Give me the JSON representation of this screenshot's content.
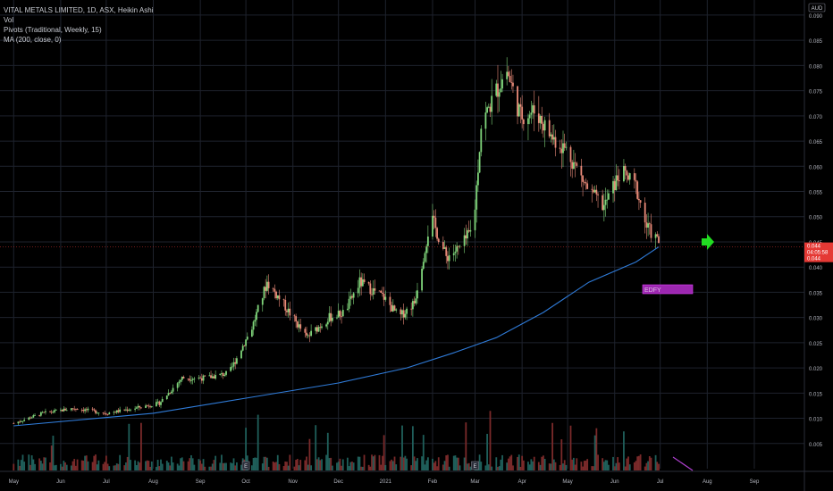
{
  "legend": {
    "title": "VITAL METALS LIMITED, 1D, ASX, Heikin Ashi",
    "line2": "Vol",
    "line3": "Pivots (Traditional, Weekly, 15)",
    "line4": "MA (200, close, 0)"
  },
  "currency_badge": "AUD",
  "price_labels": {
    "last": "0.044",
    "countdown": "04:05:58",
    "ma_value": "0.044"
  },
  "annotation": "EDFY",
  "colors": {
    "up": "#26a69a",
    "up_candle": "#7fd47a",
    "down": "#ef5350",
    "down_candle": "#e98a78",
    "ma": "#2f7bd8",
    "vol_up": "#1f5f5a",
    "vol_down": "#7a2a2a",
    "arrow": "#22dd22",
    "annotation_bg": "#9c27b0",
    "price_badge": "#e53935",
    "pivot": "#f5a623"
  },
  "chart_data": {
    "type": "candlestick",
    "yaxis": {
      "ticks": [
        "0.005",
        "0.010",
        "0.015",
        "0.020",
        "0.025",
        "0.030",
        "0.035",
        "0.040",
        "0.045",
        "0.050",
        "0.055",
        "0.060",
        "0.065",
        "0.070",
        "0.075",
        "0.080",
        "0.085",
        "0.090"
      ],
      "ylim": [
        0.0,
        0.093
      ]
    },
    "xaxis": {
      "ticks": [
        "May",
        "Jun",
        "Jul",
        "Aug",
        "Sep",
        "Oct",
        "Nov",
        "Dec",
        "2021",
        "Feb",
        "Mar",
        "Apr",
        "May",
        "Jun",
        "Jul",
        "Aug",
        "Sep"
      ]
    },
    "price_path": [
      [
        "2020-05-01",
        0.009
      ],
      [
        "2020-05-20",
        0.011
      ],
      [
        "2020-06-10",
        0.012
      ],
      [
        "2020-07-01",
        0.011
      ],
      [
        "2020-07-20",
        0.012
      ],
      [
        "2020-08-05",
        0.013
      ],
      [
        "2020-08-20",
        0.018
      ],
      [
        "2020-09-05",
        0.018
      ],
      [
        "2020-09-20",
        0.019
      ],
      [
        "2020-10-05",
        0.028
      ],
      [
        "2020-10-15",
        0.037
      ],
      [
        "2020-10-25",
        0.033
      ],
      [
        "2020-11-10",
        0.026
      ],
      [
        "2020-11-25",
        0.03
      ],
      [
        "2020-12-05",
        0.031
      ],
      [
        "2020-12-15",
        0.037
      ],
      [
        "2020-12-31",
        0.034
      ],
      [
        "2021-01-10",
        0.03
      ],
      [
        "2021-01-20",
        0.033
      ],
      [
        "2021-01-31",
        0.05
      ],
      [
        "2021-02-10",
        0.042
      ],
      [
        "2021-02-20",
        0.044
      ],
      [
        "2021-02-28",
        0.048
      ],
      [
        "2021-03-05",
        0.068
      ],
      [
        "2021-03-15",
        0.075
      ],
      [
        "2021-03-22",
        0.079
      ],
      [
        "2021-03-31",
        0.07
      ],
      [
        "2021-04-10",
        0.071
      ],
      [
        "2021-04-20",
        0.066
      ],
      [
        "2021-05-01",
        0.063
      ],
      [
        "2021-05-15",
        0.055
      ],
      [
        "2021-05-25",
        0.052
      ],
      [
        "2021-06-05",
        0.059
      ],
      [
        "2021-06-15",
        0.056
      ],
      [
        "2021-06-22",
        0.048
      ],
      [
        "2021-06-30",
        0.045
      ]
    ],
    "ma200_path": [
      [
        "2020-05-01",
        0.0085
      ],
      [
        "2020-08-01",
        0.011
      ],
      [
        "2020-10-01",
        0.014
      ],
      [
        "2020-12-01",
        0.017
      ],
      [
        "2021-01-15",
        0.02
      ],
      [
        "2021-02-15",
        0.023
      ],
      [
        "2021-03-15",
        0.026
      ],
      [
        "2021-04-15",
        0.031
      ],
      [
        "2021-05-15",
        0.037
      ],
      [
        "2021-06-15",
        0.041
      ],
      [
        "2021-06-30",
        0.044
      ]
    ],
    "last_price": 0.044
  }
}
